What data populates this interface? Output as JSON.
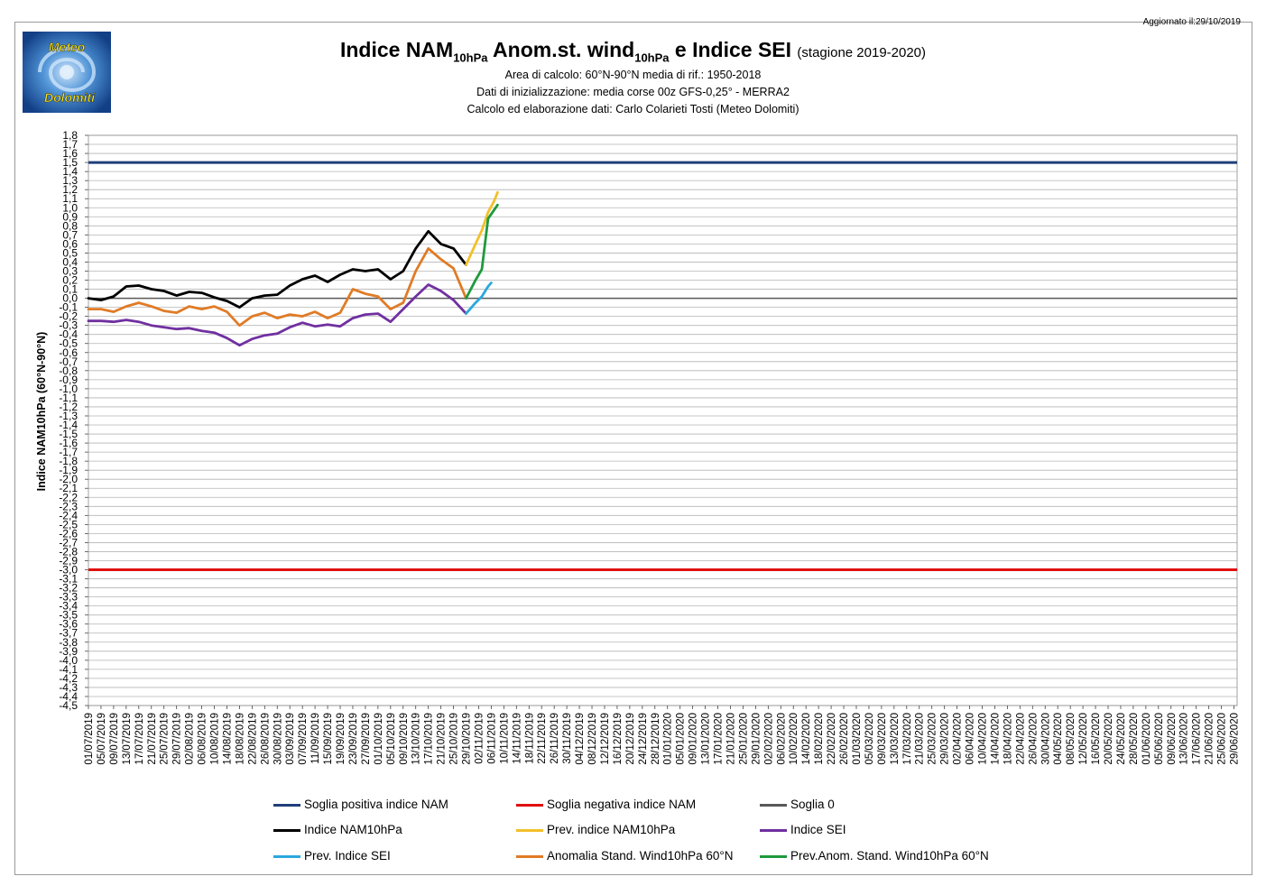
{
  "header": {
    "updated": "Aggiornato il:29/10/2019",
    "logo_text_top": "Meteo",
    "logo_text_bottom": "Dolomiti",
    "title_parts": [
      "Indice NAM",
      "10hPa",
      " Anom.st. wind",
      "10hPa",
      " e Indice SEI "
    ],
    "season": "(stagione 2019-2020)",
    "subtitle1": "Area di calcolo: 60°N-90°N media di rif.: 1950-2018",
    "subtitle2": "Dati di inizializzazione: media corse 00z GFS-0,25° - MERRA2",
    "subtitle3": "Calcolo ed elaborazione dati: Carlo Colarieti Tosti (Meteo Dolomiti)"
  },
  "colors": {
    "soglia_pos": "#1f3f7a",
    "soglia_neg": "#e01010",
    "soglia_zero": "#595959",
    "nam": "#000000",
    "prev_nam": "#f2c02a",
    "sei": "#7030a0",
    "prev_sei": "#2aa8dc",
    "anom": "#e07b26",
    "prev_anom": "#1e9a3c"
  },
  "chart_data": {
    "type": "line",
    "ylabel": "Indice NAM10hPa (60°N-90°N)",
    "ylim": [
      -4.5,
      1.8
    ],
    "ytick_step": 0.1,
    "x_start": "01/07/2019",
    "x_end": "30/06/2020",
    "xtick_labels": [
      "01/07/2019",
      "05/07/2019",
      "09/07/2019",
      "13/07/2019",
      "17/07/2019",
      "21/07/2019",
      "25/07/2019",
      "29/07/2019",
      "02/08/2019",
      "06/08/2019",
      "10/08/2019",
      "14/08/2019",
      "18/08/2019",
      "22/08/2019",
      "26/08/2019",
      "30/08/2019",
      "03/09/2019",
      "07/09/2019",
      "11/09/2019",
      "15/09/2019",
      "19/09/2019",
      "23/09/2019",
      "27/09/2019",
      "01/10/2019",
      "05/10/2019",
      "09/10/2019",
      "13/10/2019",
      "17/10/2019",
      "21/10/2019",
      "25/10/2019",
      "29/10/2019",
      "02/11/2019",
      "06/11/2019",
      "10/11/2019",
      "14/11/2019",
      "18/11/2019",
      "22/11/2019",
      "26/11/2019",
      "30/11/2019",
      "04/12/2019",
      "08/12/2019",
      "12/12/2019",
      "16/12/2019",
      "20/12/2019",
      "24/12/2019",
      "28/12/2019",
      "01/01/2020",
      "05/01/2020",
      "09/01/2020",
      "13/01/2020",
      "17/01/2020",
      "21/01/2020",
      "25/01/2020",
      "29/01/2020",
      "02/02/2020",
      "06/02/2020",
      "10/02/2020",
      "14/02/2020",
      "18/02/2020",
      "22/02/2020",
      "26/02/2020",
      "01/03/2020",
      "05/03/2020",
      "09/03/2020",
      "13/03/2020",
      "17/03/2020",
      "21/03/2020",
      "25/03/2020",
      "29/03/2020",
      "02/04/2020",
      "06/04/2020",
      "10/04/2020",
      "14/04/2020",
      "18/04/2020",
      "22/04/2020",
      "26/04/2020",
      "30/04/2020",
      "04/05/2020",
      "08/05/2020",
      "12/05/2020",
      "16/05/2020",
      "20/05/2020",
      "24/05/2020",
      "28/05/2020",
      "01/06/2020",
      "05/06/2020",
      "09/06/2020",
      "13/06/2020",
      "17/06/2020",
      "21/06/2020",
      "25/06/2020",
      "29/06/2020"
    ],
    "thresholds": [
      {
        "name": "Soglia positiva indice NAM",
        "value": 1.5,
        "color_key": "soglia_pos"
      },
      {
        "name": "Soglia negativa indice NAM",
        "value": -3.0,
        "color_key": "soglia_neg"
      },
      {
        "name": "Soglia 0",
        "value": 0.0,
        "color_key": "soglia_zero"
      }
    ],
    "series": [
      {
        "name": "Indice NAM10hPa",
        "color_key": "nam",
        "x": [
          "01/07/2019",
          "05/07/2019",
          "09/07/2019",
          "13/07/2019",
          "17/07/2019",
          "21/07/2019",
          "25/07/2019",
          "29/07/2019",
          "02/08/2019",
          "06/08/2019",
          "10/08/2019",
          "14/08/2019",
          "18/08/2019",
          "22/08/2019",
          "26/08/2019",
          "30/08/2019",
          "03/09/2019",
          "07/09/2019",
          "11/09/2019",
          "15/09/2019",
          "19/09/2019",
          "23/09/2019",
          "27/09/2019",
          "01/10/2019",
          "05/10/2019",
          "09/10/2019",
          "13/10/2019",
          "17/10/2019",
          "21/10/2019",
          "25/10/2019",
          "29/10/2019"
        ],
        "values": [
          0.0,
          -0.02,
          0.02,
          0.13,
          0.14,
          0.1,
          0.08,
          0.03,
          0.07,
          0.06,
          0.01,
          -0.03,
          -0.1,
          0.0,
          0.03,
          0.04,
          0.14,
          0.21,
          0.25,
          0.18,
          0.26,
          0.32,
          0.3,
          0.32,
          0.21,
          0.3,
          0.55,
          0.74,
          0.6,
          0.55,
          0.37
        ]
      },
      {
        "name": "Prev. indice NAM10hPa",
        "color_key": "prev_nam",
        "x": [
          "29/10/2019",
          "01/11/2019",
          "03/11/2019",
          "05/11/2019",
          "07/11/2019",
          "08/11/2019"
        ],
        "values": [
          0.37,
          0.6,
          0.75,
          0.95,
          1.08,
          1.17
        ]
      },
      {
        "name": "Indice SEI",
        "color_key": "sei",
        "x": [
          "01/07/2019",
          "05/07/2019",
          "09/07/2019",
          "13/07/2019",
          "17/07/2019",
          "21/07/2019",
          "25/07/2019",
          "29/07/2019",
          "02/08/2019",
          "06/08/2019",
          "10/08/2019",
          "14/08/2019",
          "18/08/2019",
          "22/08/2019",
          "26/08/2019",
          "30/08/2019",
          "03/09/2019",
          "07/09/2019",
          "11/09/2019",
          "15/09/2019",
          "19/09/2019",
          "23/09/2019",
          "27/09/2019",
          "01/10/2019",
          "05/10/2019",
          "09/10/2019",
          "13/10/2019",
          "17/10/2019",
          "21/10/2019",
          "25/10/2019",
          "29/10/2019"
        ],
        "values": [
          -0.25,
          -0.25,
          -0.26,
          -0.24,
          -0.26,
          -0.3,
          -0.32,
          -0.34,
          -0.33,
          -0.36,
          -0.38,
          -0.44,
          -0.52,
          -0.45,
          -0.41,
          -0.39,
          -0.32,
          -0.27,
          -0.31,
          -0.29,
          -0.31,
          -0.22,
          -0.18,
          -0.17,
          -0.26,
          -0.12,
          0.02,
          0.15,
          0.08,
          -0.02,
          -0.17
        ]
      },
      {
        "name": "Prev. Indice SEI",
        "color_key": "prev_sei",
        "x": [
          "29/10/2019",
          "01/11/2019",
          "03/11/2019",
          "05/11/2019",
          "06/11/2019"
        ],
        "values": [
          -0.17,
          -0.05,
          0.02,
          0.13,
          0.17
        ]
      },
      {
        "name": "Anomalia Stand. Wind10hPa 60°N",
        "color_key": "anom",
        "x": [
          "01/07/2019",
          "05/07/2019",
          "09/07/2019",
          "13/07/2019",
          "17/07/2019",
          "21/07/2019",
          "25/07/2019",
          "29/07/2019",
          "02/08/2019",
          "06/08/2019",
          "10/08/2019",
          "14/08/2019",
          "18/08/2019",
          "22/08/2019",
          "26/08/2019",
          "30/08/2019",
          "03/09/2019",
          "07/09/2019",
          "11/09/2019",
          "15/09/2019",
          "19/09/2019",
          "23/09/2019",
          "27/09/2019",
          "01/10/2019",
          "05/10/2019",
          "09/10/2019",
          "13/10/2019",
          "17/10/2019",
          "21/10/2019",
          "25/10/2019",
          "29/10/2019"
        ],
        "values": [
          -0.12,
          -0.12,
          -0.15,
          -0.09,
          -0.05,
          -0.09,
          -0.14,
          -0.16,
          -0.09,
          -0.12,
          -0.09,
          -0.15,
          -0.3,
          -0.2,
          -0.16,
          -0.22,
          -0.18,
          -0.2,
          -0.15,
          -0.22,
          -0.16,
          0.1,
          0.05,
          0.02,
          -0.12,
          -0.05,
          0.3,
          0.55,
          0.43,
          0.33,
          0.0
        ]
      },
      {
        "name": "Prev.Anom. Stand. Wind10hPa 60°N",
        "color_key": "prev_anom",
        "x": [
          "29/10/2019",
          "01/11/2019",
          "03/11/2019",
          "05/11/2019",
          "07/11/2019",
          "08/11/2019"
        ],
        "values": [
          0.0,
          0.2,
          0.32,
          0.88,
          0.98,
          1.03
        ]
      }
    ],
    "legend": {
      "position": "bottom",
      "entries": [
        {
          "label": "Soglia positiva indice NAM",
          "color_key": "soglia_pos"
        },
        {
          "label": "Soglia negativa indice NAM",
          "color_key": "soglia_neg"
        },
        {
          "label": "Soglia 0",
          "color_key": "soglia_zero"
        },
        {
          "label": "Indice NAM10hPa",
          "color_key": "nam"
        },
        {
          "label": "Prev. indice NAM10hPa",
          "color_key": "prev_nam"
        },
        {
          "label": "Indice SEI",
          "color_key": "sei"
        },
        {
          "label": "Prev. Indice SEI",
          "color_key": "prev_sei"
        },
        {
          "label": "Anomalia Stand. Wind10hPa 60°N",
          "color_key": "anom"
        },
        {
          "label": "Prev.Anom. Stand. Wind10hPa 60°N",
          "color_key": "prev_anom"
        }
      ]
    },
    "grid": true
  }
}
